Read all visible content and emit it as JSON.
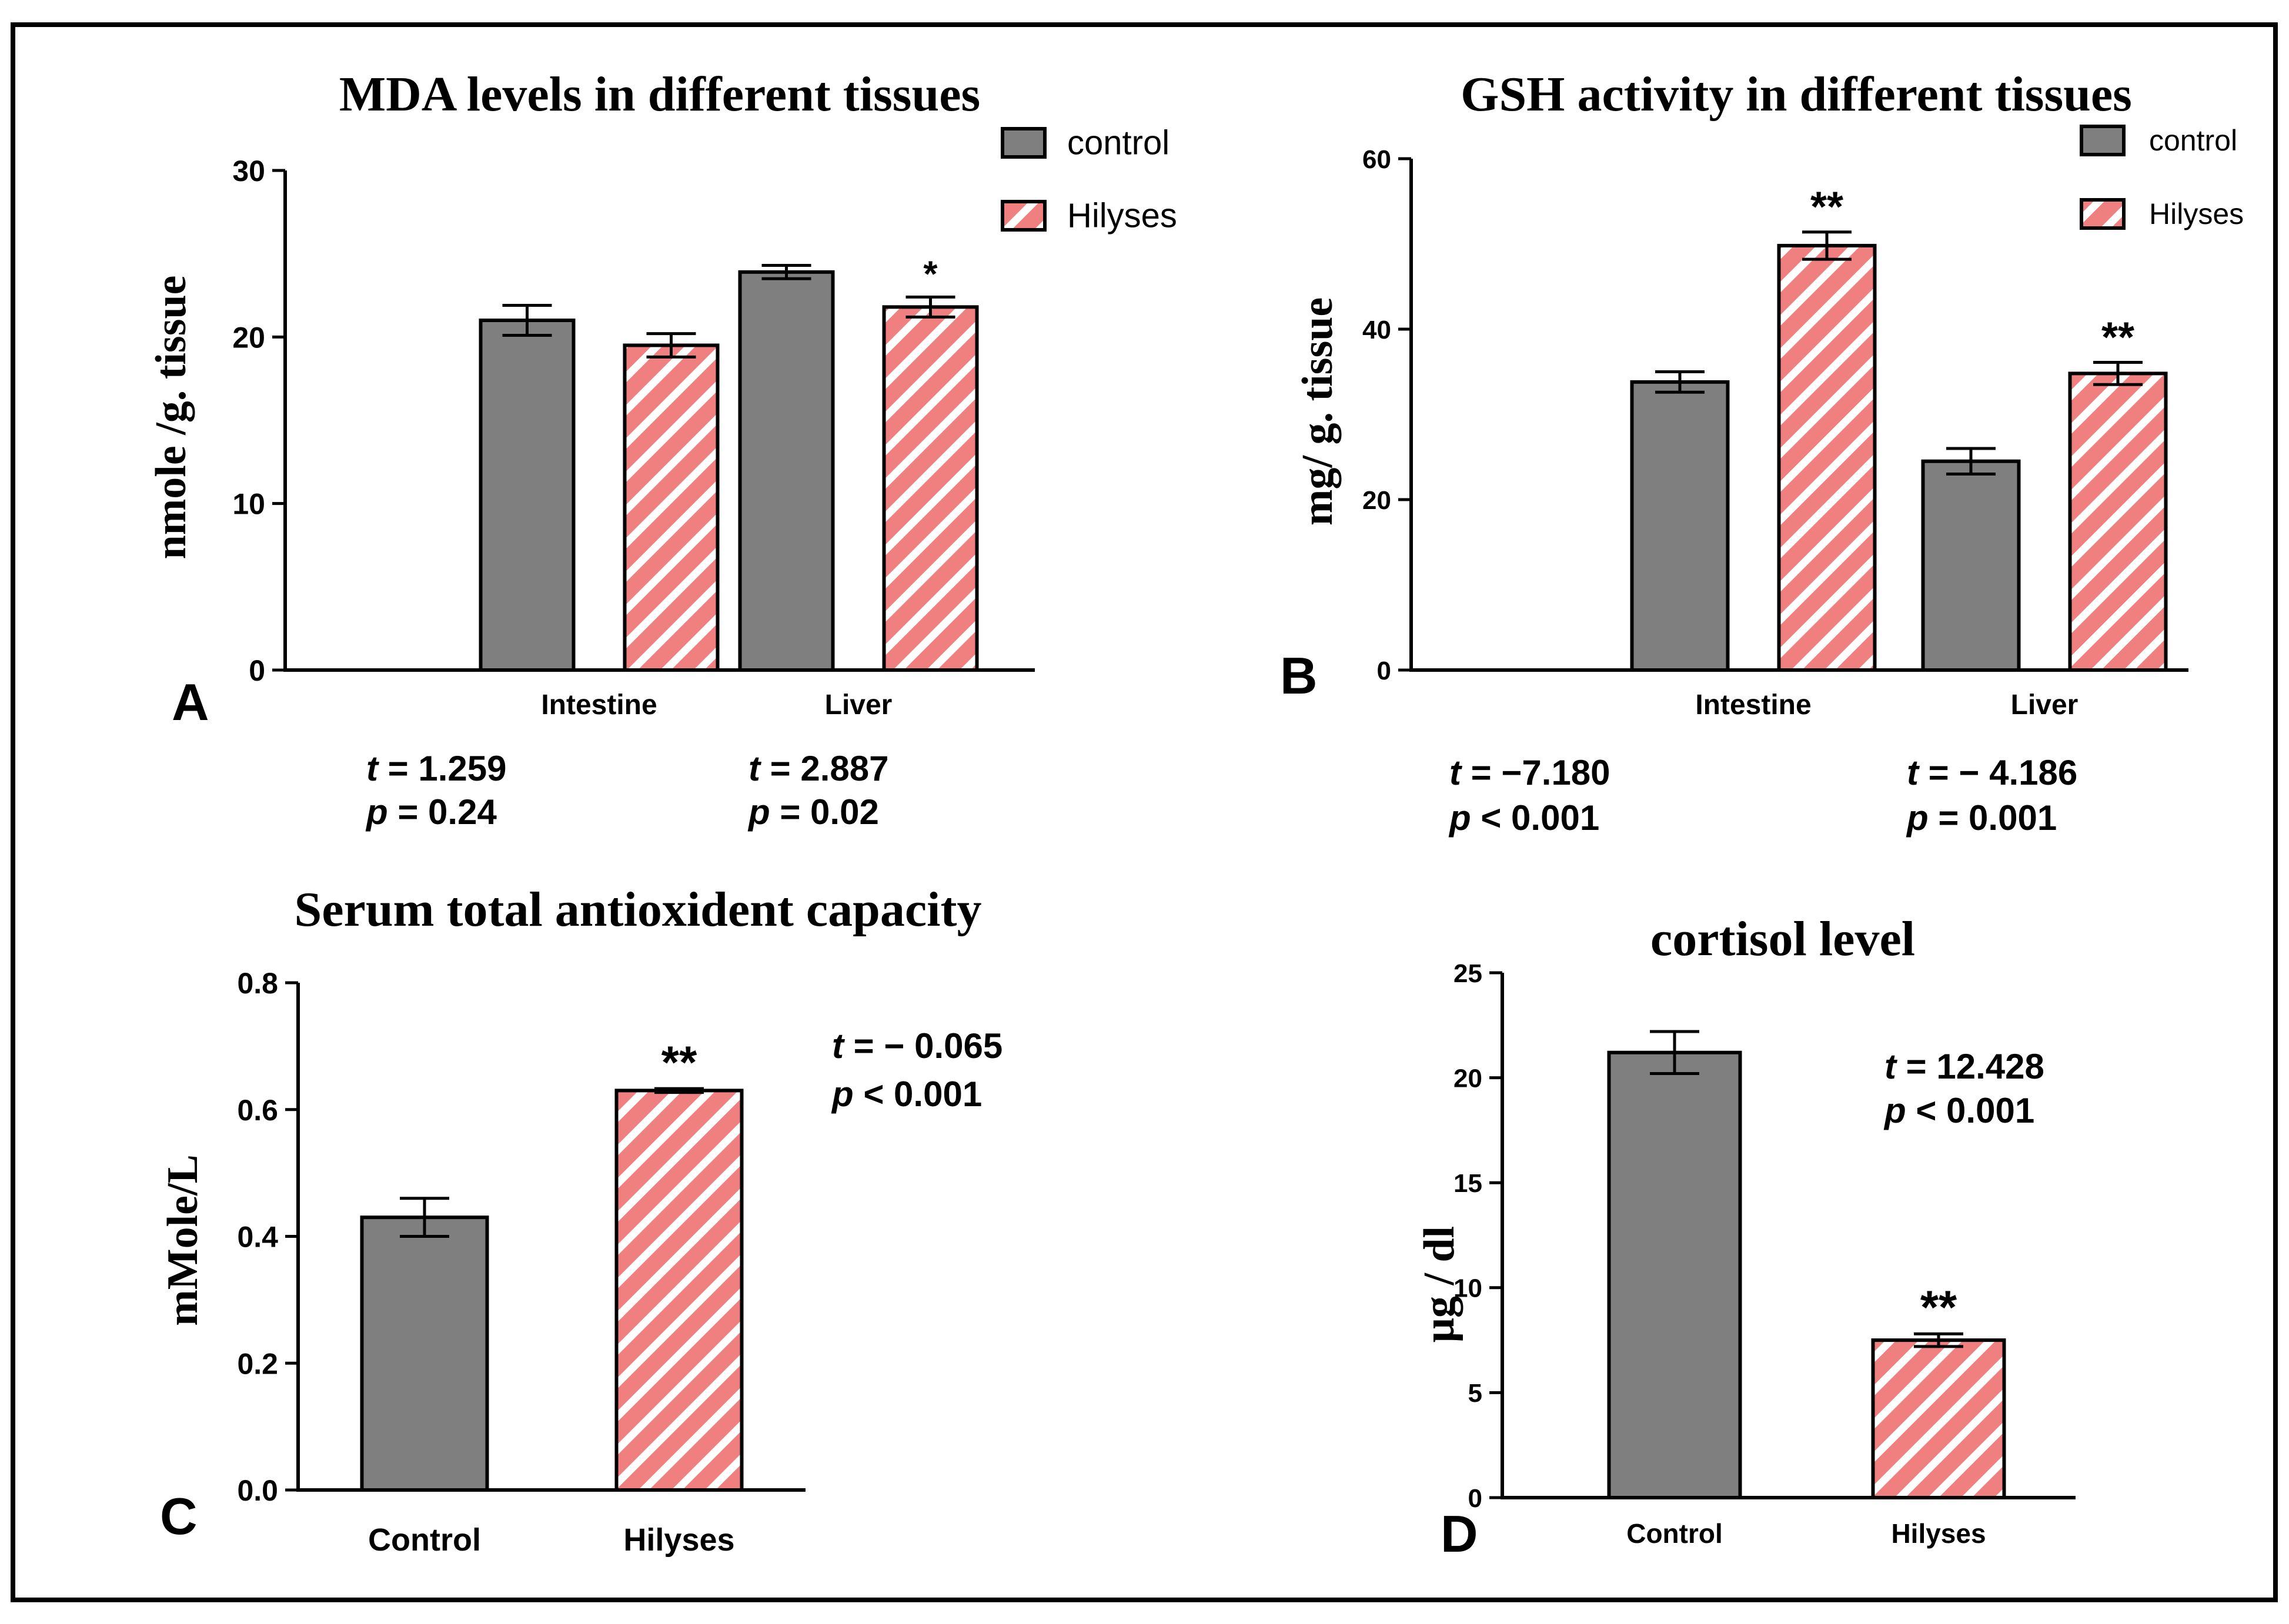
{
  "colors": {
    "control_fill": "#7f7f7f",
    "hilyses_fill": "#f08080",
    "hatch_line": "#ffffff",
    "axis": "#000000",
    "border": "#000000"
  },
  "charts": [
    {
      "panel_label": "A",
      "title": "MDA levels in different tissues",
      "ylabel": "nmole /g. tissue",
      "ylim": [
        0,
        30
      ],
      "yticks": [
        "0",
        "10",
        "20",
        "30"
      ],
      "categories": [
        "Intestine",
        "Liver"
      ],
      "legend_labels": [
        "control",
        "Hilyses"
      ],
      "stats": [
        {
          "t_label": "t",
          "t_text": " = 1.259",
          "p_label": "p",
          "p_text": " = 0.24"
        },
        {
          "t_label": "t",
          "t_text": " = 2.887",
          "p_label": "p",
          "p_text": " = 0.02"
        }
      ]
    },
    {
      "panel_label": "B",
      "title": "GSH activity in different tissues",
      "ylabel": "mg/ g. tissue",
      "ylim": [
        0,
        60
      ],
      "yticks": [
        "0",
        "20",
        "40",
        "60"
      ],
      "categories": [
        "Intestine",
        "Liver"
      ],
      "legend_labels": [
        "control",
        "Hilyses"
      ],
      "stats": [
        {
          "t_label": "t",
          "t_text": " = −7.180",
          "p_label": "p",
          "p_text": " < 0.001"
        },
        {
          "t_label": "t",
          "t_text": " = − 4.186",
          "p_label": "p",
          "p_text": " = 0.001"
        }
      ]
    },
    {
      "panel_label": "C",
      "title": "Serum total antioxident capacity",
      "ylabel": "mMole/L",
      "ylim": [
        0,
        0.8
      ],
      "yticks": [
        "0.0",
        "0.2",
        "0.4",
        "0.6",
        "0.8"
      ],
      "categories": [
        "Control",
        "Hilyses"
      ],
      "stats": [
        {
          "t_label": "t",
          "t_text": " =  − 0.065",
          "p_label": "p",
          "p_text": " < 0.001"
        }
      ]
    },
    {
      "panel_label": "D",
      "title": "cortisol level",
      "ylabel": "μg / dl",
      "ylim": [
        0,
        25
      ],
      "yticks": [
        "0",
        "5",
        "10",
        "15",
        "20",
        "25"
      ],
      "categories": [
        "Control",
        "Hilyses"
      ],
      "stats": [
        {
          "t_label": "t",
          "t_text": " = 12.428",
          "p_label": "p",
          "p_text": " < 0.001"
        }
      ]
    }
  ],
  "chart_data": [
    {
      "type": "bar",
      "title": "MDA levels in different tissues",
      "xlabel": "",
      "ylabel": "nmole /g. tissue",
      "ylim": [
        0,
        30
      ],
      "categories": [
        "Intestine",
        "Liver"
      ],
      "series": [
        {
          "name": "control",
          "values": [
            21.0,
            23.9
          ],
          "errors": [
            0.9,
            0.4
          ],
          "significance": [
            "",
            ""
          ]
        },
        {
          "name": "Hilyses",
          "values": [
            19.5,
            21.8
          ],
          "errors": [
            0.7,
            0.6
          ],
          "significance": [
            "",
            "*"
          ]
        }
      ],
      "legend": "top-right"
    },
    {
      "type": "bar",
      "title": "GSH activity in different tissues",
      "xlabel": "",
      "ylabel": "mg/ g. tissue",
      "ylim": [
        0,
        60
      ],
      "categories": [
        "Intestine",
        "Liver"
      ],
      "series": [
        {
          "name": "control",
          "values": [
            33.8,
            24.5
          ],
          "errors": [
            1.2,
            1.5
          ],
          "significance": [
            "",
            ""
          ]
        },
        {
          "name": "Hilyses",
          "values": [
            49.8,
            34.8
          ],
          "errors": [
            1.6,
            1.3
          ],
          "significance": [
            "**",
            "**"
          ]
        }
      ],
      "legend": "top-right"
    },
    {
      "type": "bar",
      "title": "Serum total antioxident capacity",
      "xlabel": "",
      "ylabel": "mMole/L",
      "ylim": [
        0,
        0.8
      ],
      "categories": [
        "Control",
        "Hilyses"
      ],
      "values": [
        0.43,
        0.63
      ],
      "errors": [
        0.03,
        0.003
      ],
      "significance": [
        "",
        "**"
      ]
    },
    {
      "type": "bar",
      "title": "cortisol level",
      "xlabel": "",
      "ylabel": "μg / dl",
      "ylim": [
        0,
        25
      ],
      "categories": [
        "Control",
        "Hilyses"
      ],
      "values": [
        21.2,
        7.5
      ],
      "errors": [
        1.0,
        0.3
      ],
      "significance": [
        "",
        "**"
      ]
    }
  ]
}
